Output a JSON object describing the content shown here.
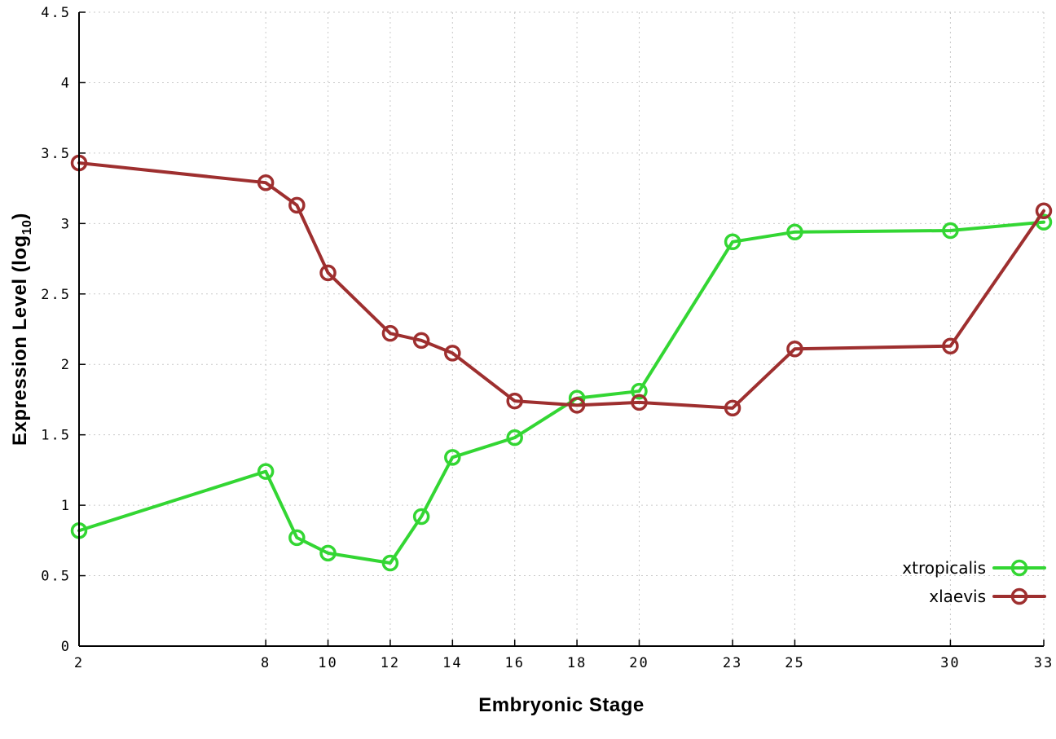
{
  "chart_data": {
    "type": "line",
    "title": "",
    "xlabel": "Embryonic Stage",
    "ylabel": {
      "main": "Expression Level (log",
      "sub": "10",
      "end": ")"
    },
    "x": [
      2,
      8,
      9,
      10,
      12,
      13,
      14,
      16,
      18,
      20,
      23,
      25,
      30,
      33
    ],
    "xticks": [
      2,
      8,
      10,
      12,
      14,
      16,
      18,
      20,
      23,
      25,
      30,
      33
    ],
    "yticks": [
      0,
      0.5,
      1,
      1.5,
      2,
      2.5,
      3,
      3.5,
      4,
      4.5
    ],
    "ytick_labels": [
      "0",
      "0.5",
      "1",
      "1.5",
      "2",
      "2.5",
      "3",
      "3.5",
      "4",
      "4.5"
    ],
    "xtick_labels": [
      "2",
      "8",
      "10",
      "12",
      "14",
      "16",
      "18",
      "20",
      "23",
      "25",
      "30",
      "33"
    ],
    "xlim": [
      2,
      33
    ],
    "ylim": [
      0,
      4.5
    ],
    "grid": true,
    "marker": "open-circle",
    "legend_position": "inside-bottom-right",
    "series": [
      {
        "name": "xtropicalis",
        "color": "#33d633",
        "values": [
          0.82,
          1.24,
          0.77,
          0.66,
          0.59,
          0.92,
          1.34,
          1.48,
          1.76,
          1.81,
          2.87,
          2.94,
          2.95,
          3.01
        ]
      },
      {
        "name": "xlaevis",
        "color": "#9e2f2f",
        "values": [
          3.43,
          3.29,
          3.13,
          2.65,
          2.22,
          2.17,
          2.08,
          1.74,
          1.71,
          1.73,
          1.69,
          2.11,
          2.13,
          3.09
        ]
      }
    ]
  },
  "colors": {
    "grid": "#c9c9c9",
    "axis": "#000000",
    "background": "#ffffff"
  }
}
